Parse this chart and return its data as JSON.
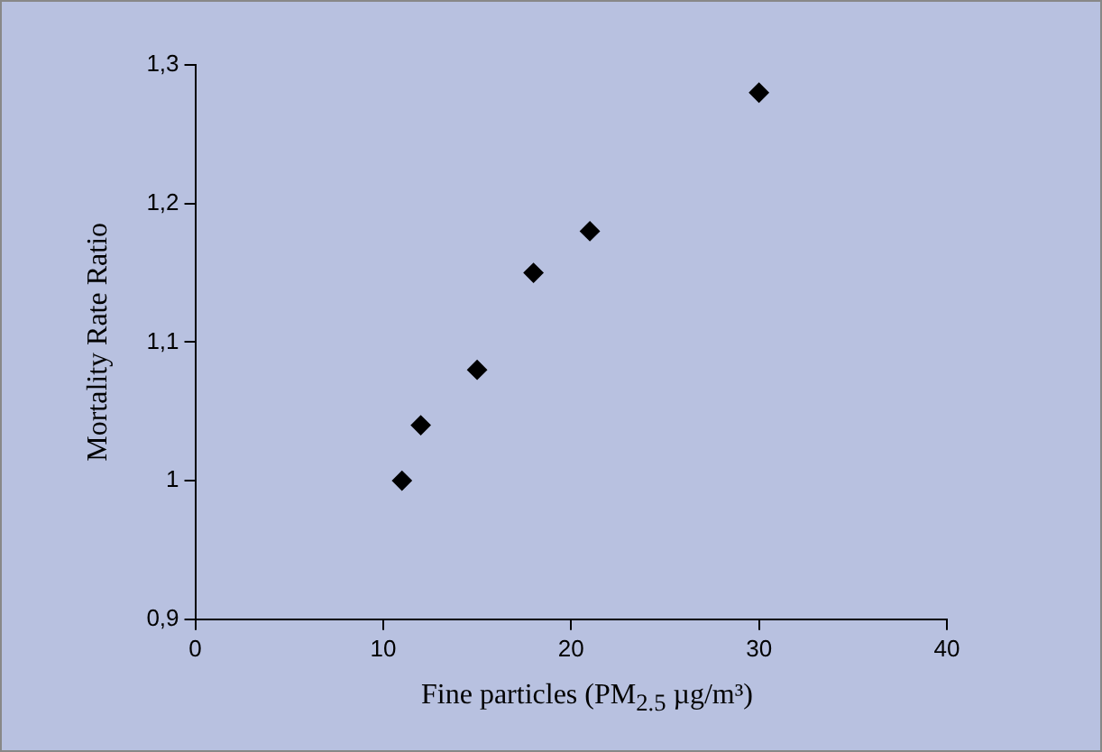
{
  "chart_data": {
    "type": "scatter",
    "xlabel": "Fine particles (PM$_{2.5}$ µg/m³)",
    "ylabel": "Mortality Rate Ratio",
    "x": [
      11,
      12,
      15,
      18,
      21,
      30
    ],
    "series": [
      {
        "color": "#000000",
        "values": [
          1.0,
          1.04,
          1.08,
          1.15,
          1.18,
          1.28
        ]
      }
    ],
    "xlim": [
      0,
      40
    ],
    "xticks": [
      0,
      10,
      20,
      30,
      40
    ],
    "ylim": [
      0.9,
      1.3
    ],
    "yticks": [
      {
        "value": 0.9,
        "label": "0,9"
      },
      {
        "value": 1,
        "label": "1"
      },
      {
        "value": 1.1,
        "label": "1,1"
      },
      {
        "value": 1.2,
        "label": "1,2"
      },
      {
        "value": 1.3,
        "label": "1,3"
      }
    ],
    "marker": "diamond",
    "grid": false,
    "legend": false
  }
}
